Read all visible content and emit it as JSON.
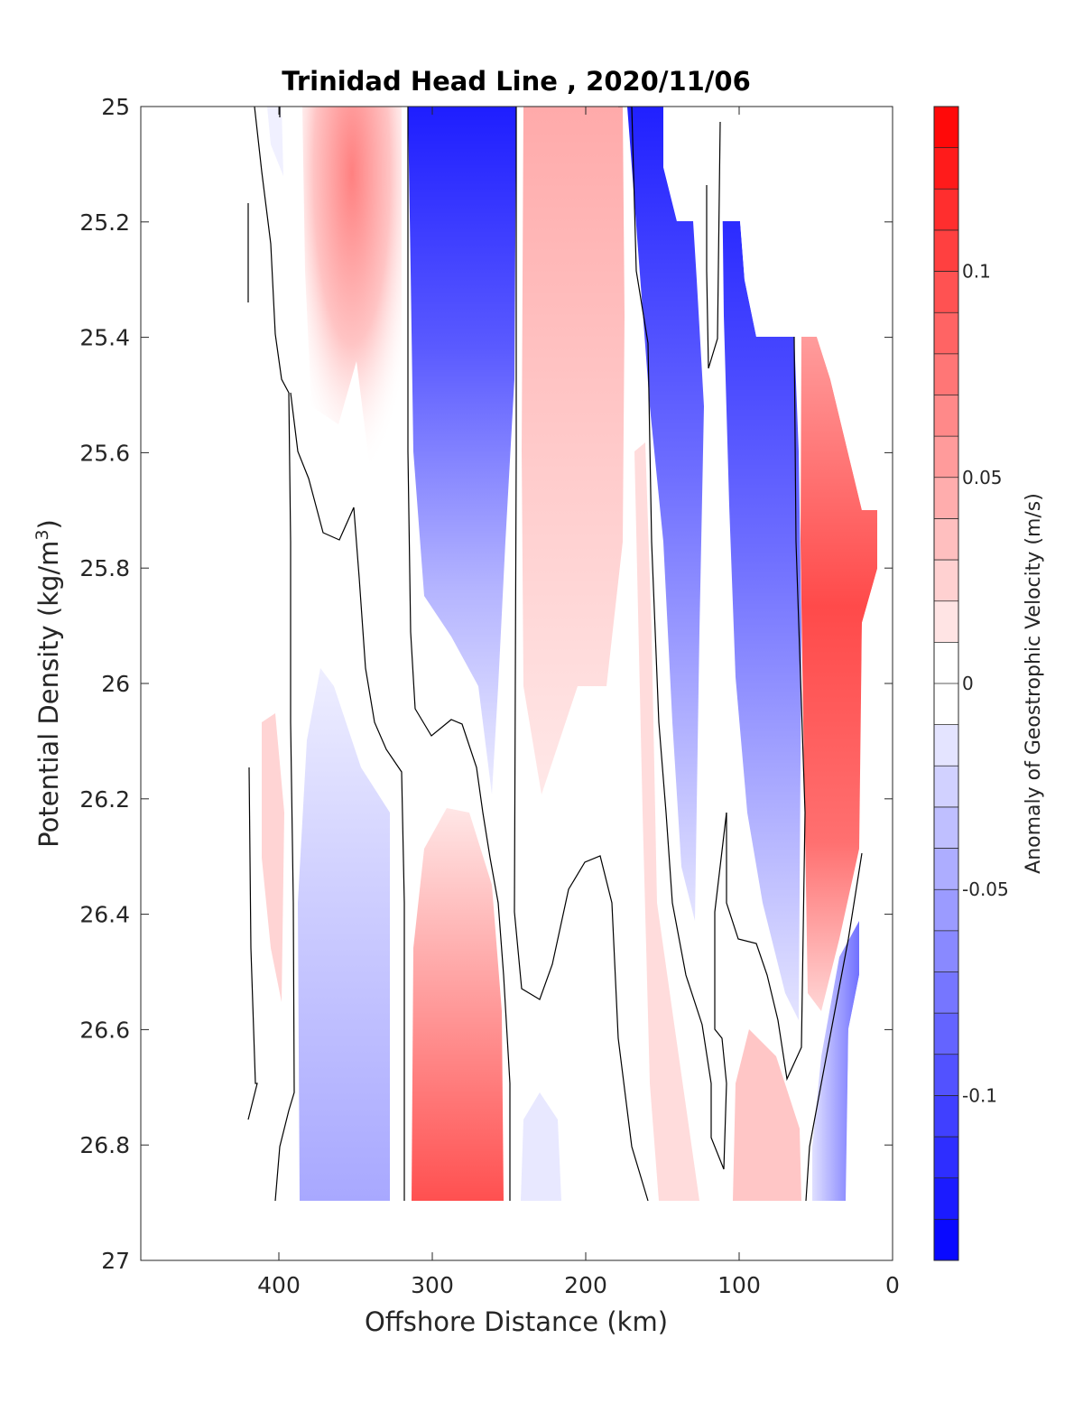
{
  "chart_data": {
    "type": "heatmap",
    "title": "Trinidad Head Line , 2020/11/06",
    "xlabel": "Offshore Distance (km)",
    "ylabel": "Potential Density (kg/m",
    "ylabel_sup": "3",
    "ylabel_close": ")",
    "colorbar_label": "Anomaly of Geostrophic Velocity (m/s)",
    "xlim": [
      490,
      0
    ],
    "ylim": [
      25,
      27
    ],
    "x_ticks": [
      400,
      300,
      200,
      100,
      0
    ],
    "x_tick_labels": [
      "400",
      "300",
      "200",
      "100",
      "0"
    ],
    "y_ticks": [
      25,
      25.2,
      25.4,
      25.6,
      25.8,
      26,
      26.2,
      26.4,
      26.6,
      26.8,
      27
    ],
    "y_tick_labels": [
      "25",
      "25.2",
      "25.4",
      "25.6",
      "25.8",
      "26",
      "26.2",
      "26.4",
      "26.6",
      "26.8",
      "27"
    ],
    "colorbar": {
      "range": [
        -0.14,
        0.14
      ],
      "ticks": [
        0.1,
        0.05,
        0,
        -0.05,
        -0.1
      ],
      "tick_labels": [
        "0.1",
        "0.05",
        "0",
        "-0.05",
        "-0.1"
      ],
      "levels": 28,
      "neutral_band": [
        -0.01,
        0.01
      ],
      "colormap": "blue-white-red",
      "positive_color": "#ff0000",
      "negative_color": "#0000ff"
    },
    "data_extent": {
      "x": [
        420,
        12
      ],
      "y": [
        25,
        26.9
      ]
    },
    "features": [
      {
        "name": "north pink band",
        "x": [
          335,
          385
        ],
        "y": [
          25.0,
          25.7
        ],
        "peak": 0.03
      },
      {
        "name": "blue core",
        "x": [
          255,
          315
        ],
        "y": [
          25.0,
          26.15
        ],
        "peak": -0.11
      },
      {
        "name": "south pink band",
        "x": [
          185,
          245
        ],
        "y": [
          25.0,
          26.2
        ],
        "peak": 0.03
      },
      {
        "name": "shelf blue",
        "x": [
          90,
          160
        ],
        "y": [
          25.0,
          26.5
        ],
        "peak": -0.11
      },
      {
        "name": "nearshore red",
        "x": [
          12,
          60
        ],
        "y": [
          25.4,
          26.5
        ],
        "peak": 0.09
      },
      {
        "name": "deep blue west",
        "x": [
          325,
          390
        ],
        "y": [
          25.95,
          26.9
        ],
        "peak": -0.04
      },
      {
        "name": "deep red",
        "x": [
          255,
          320
        ],
        "y": [
          26.25,
          26.9
        ],
        "peak": 0.07
      },
      {
        "name": "deep blue east",
        "x": [
          30,
          55
        ],
        "y": [
          26.55,
          26.9
        ],
        "peak": -0.05
      }
    ]
  }
}
